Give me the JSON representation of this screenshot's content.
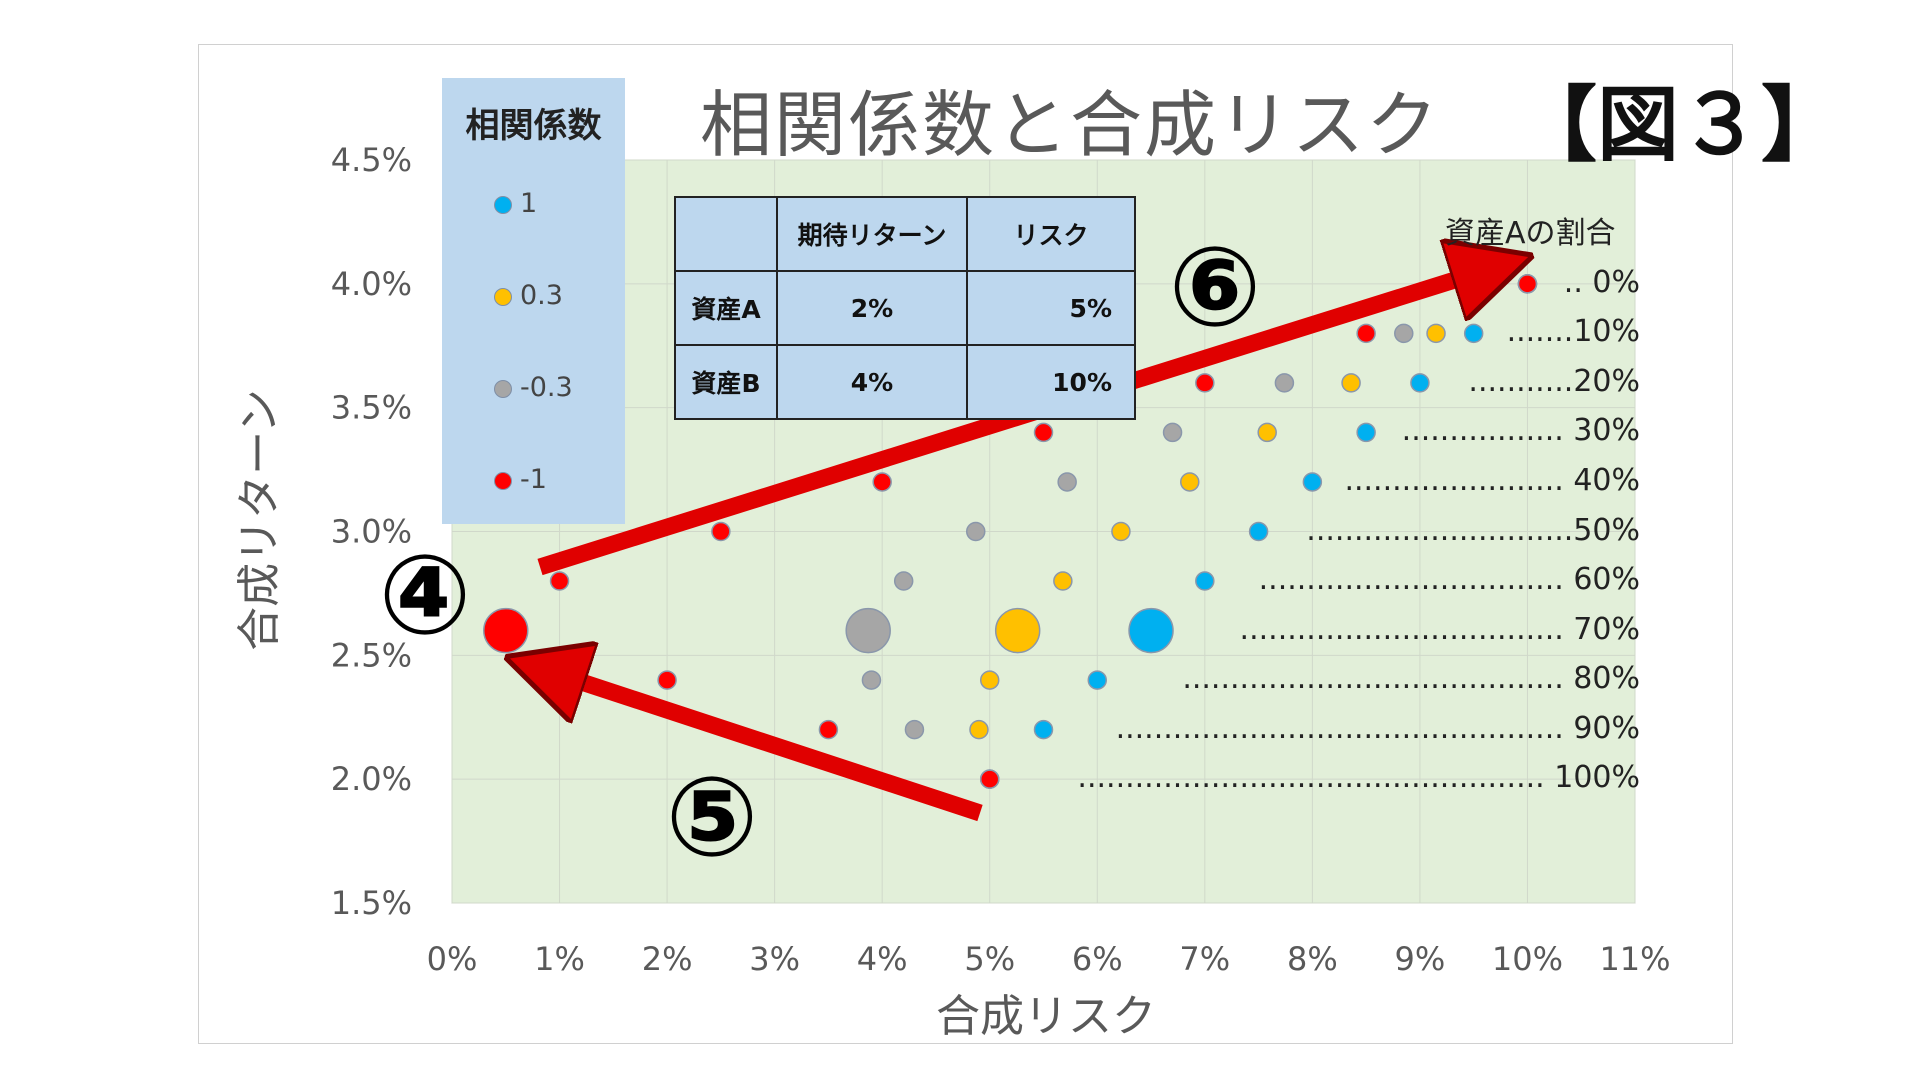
{
  "title": "相関係数と合成リスク",
  "figure_tag": "【図３】",
  "legend": {
    "title": "相関係数",
    "items": [
      {
        "label": "1",
        "color": "#00b0f0"
      },
      {
        "label": "0.3",
        "color": "#ffc000"
      },
      {
        "label": "-0.3",
        "color": "#a6a6a6"
      },
      {
        "label": "-1",
        "color": "#ff0000"
      }
    ]
  },
  "asset_table": {
    "header": [
      "",
      "期待リターン",
      "リスク"
    ],
    "rows": [
      [
        "資産A",
        "2%",
        "5%"
      ],
      [
        "資産B",
        "4%",
        "10%"
      ]
    ]
  },
  "ratio_header": "資産Aの割合",
  "ratio_labels": [
    ".. 0%",
    ".......10%",
    "...........20%",
    "................. 30%",
    "....................... 40%",
    "............................50%",
    "................................ 60%",
    ".................................. 70%",
    "........................................ 80%",
    "............................................... 90%",
    "................................................. 100%"
  ],
  "annotations": [
    "⑥",
    "④",
    "⑤"
  ],
  "chart_data": {
    "type": "scatter",
    "xlabel": "合成リスク",
    "ylabel": "合成リターン",
    "xlim": [
      0,
      11
    ],
    "ylim": [
      1.5,
      4.5
    ],
    "x_ticks": [
      "0%",
      "1%",
      "2%",
      "3%",
      "4%",
      "5%",
      "6%",
      "7%",
      "8%",
      "9%",
      "10%",
      "11%"
    ],
    "y_ticks": [
      "1.5%",
      "2.0%",
      "2.5%",
      "3.0%",
      "3.5%",
      "4.0%",
      "4.5%"
    ],
    "grid": true,
    "x_unit": "%",
    "y_unit": "%",
    "highlight_ratio": "70%",
    "series": [
      {
        "name": "1",
        "color": "#00b0f0",
        "points": [
          [
            10,
            4.0
          ],
          [
            9.5,
            3.8
          ],
          [
            9.0,
            3.6
          ],
          [
            8.5,
            3.4
          ],
          [
            8.0,
            3.2
          ],
          [
            7.5,
            3.0
          ],
          [
            7.0,
            2.8
          ],
          [
            6.5,
            2.6
          ],
          [
            6.0,
            2.4
          ],
          [
            5.5,
            2.2
          ],
          [
            5.0,
            2.0
          ]
        ]
      },
      {
        "name": "0.3",
        "color": "#ffc000",
        "points": [
          [
            10,
            4.0
          ],
          [
            9.15,
            3.8
          ],
          [
            8.36,
            3.6
          ],
          [
            7.58,
            3.4
          ],
          [
            6.86,
            3.2
          ],
          [
            6.22,
            3.0
          ],
          [
            5.68,
            2.8
          ],
          [
            5.26,
            2.6
          ],
          [
            5.0,
            2.4
          ],
          [
            4.9,
            2.2
          ],
          [
            5.0,
            2.0
          ]
        ]
      },
      {
        "name": "-0.3",
        "color": "#a6a6a6",
        "points": [
          [
            10,
            4.0
          ],
          [
            8.85,
            3.8
          ],
          [
            7.74,
            3.6
          ],
          [
            6.7,
            3.4
          ],
          [
            5.72,
            3.2
          ],
          [
            4.87,
            3.0
          ],
          [
            4.2,
            2.8
          ],
          [
            3.87,
            2.6
          ],
          [
            3.9,
            2.4
          ],
          [
            4.3,
            2.2
          ],
          [
            5.0,
            2.0
          ]
        ]
      },
      {
        "name": "-1",
        "color": "#ff0000",
        "points": [
          [
            10,
            4.0
          ],
          [
            8.5,
            3.8
          ],
          [
            7.0,
            3.6
          ],
          [
            5.5,
            3.4
          ],
          [
            4.0,
            3.2
          ],
          [
            2.5,
            3.0
          ],
          [
            1.0,
            2.8
          ],
          [
            0.5,
            2.6
          ],
          [
            2.0,
            2.4
          ],
          [
            3.5,
            2.2
          ],
          [
            5.0,
            2.0
          ]
        ]
      }
    ]
  }
}
